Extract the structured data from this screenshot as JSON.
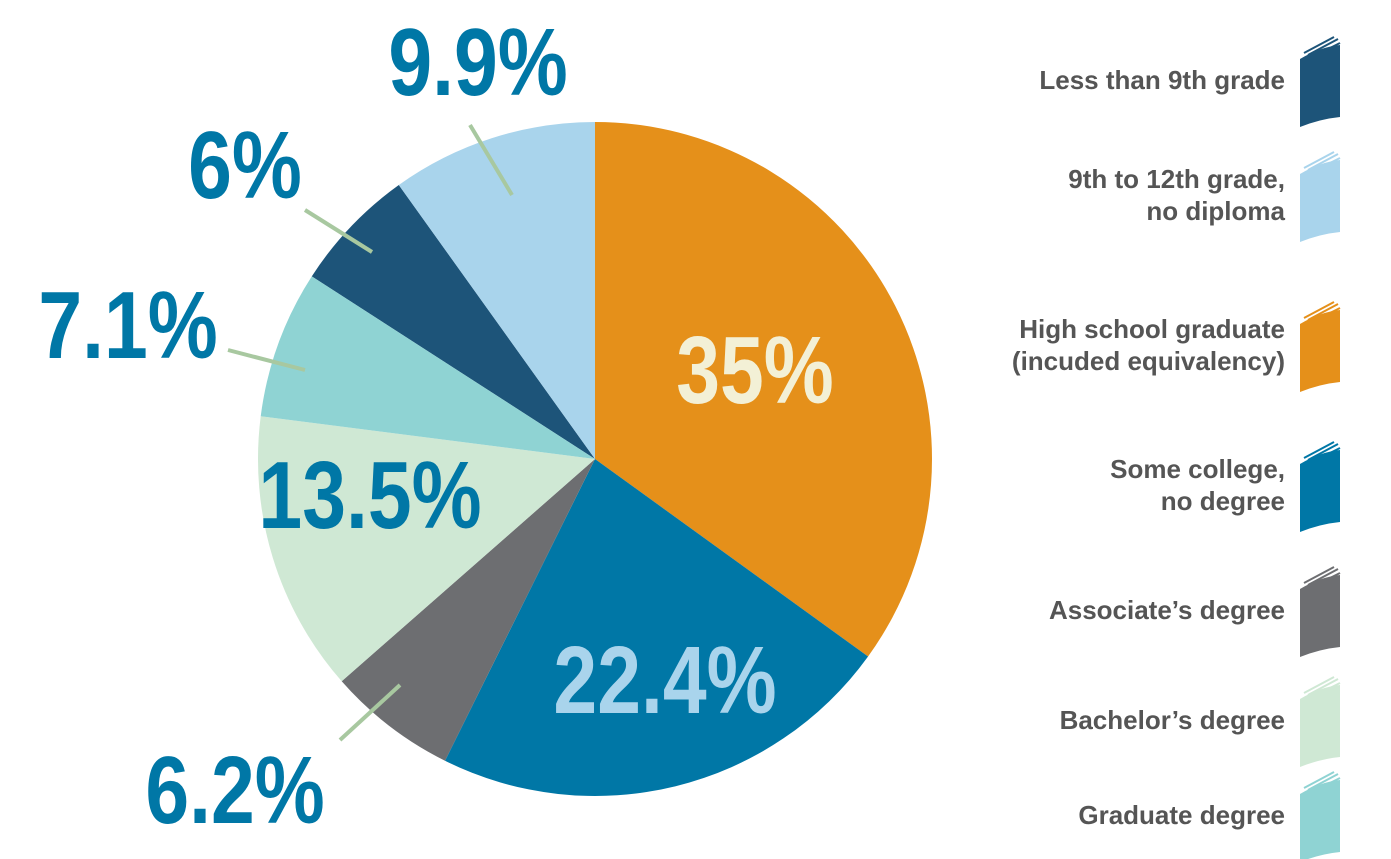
{
  "chart_data": {
    "type": "pie",
    "categories": [
      "Less than 9th grade",
      "9th to 12th grade,\nno diploma",
      "High school graduate\n(incuded equivalency)",
      "Some college,\nno degree",
      "Associate’s degree",
      "Bachelor’s degree",
      "Graduate degree"
    ],
    "values": [
      6,
      9.9,
      35,
      22.4,
      6.2,
      13.5,
      7.1
    ],
    "value_labels": [
      "6%",
      "9.9%",
      "35%",
      "22.4%",
      "6.2%",
      "13.5%",
      "7.1%"
    ],
    "colors": [
      "#1d5479",
      "#a9d4ec",
      "#e5901a",
      "#0077a6",
      "#6d6e71",
      "#cfe8d4",
      "#8fd3d3"
    ],
    "legend": "right"
  }
}
